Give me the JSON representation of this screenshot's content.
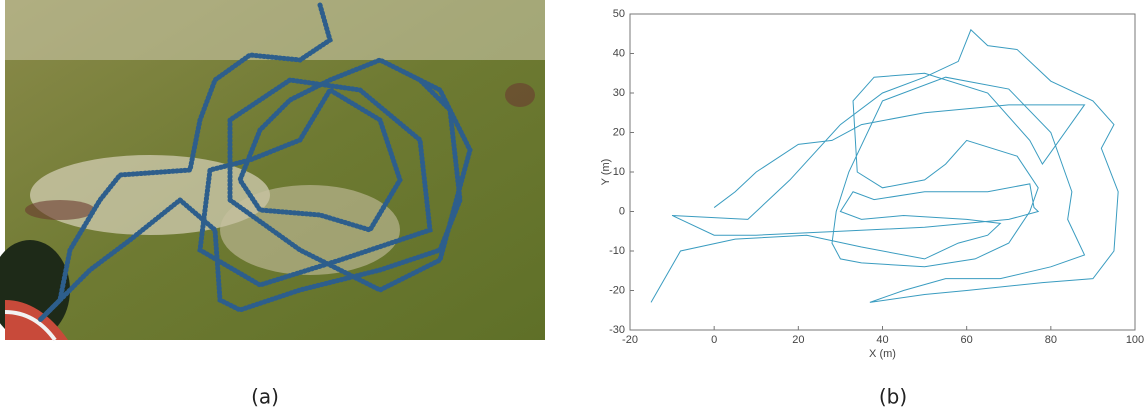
{
  "panels": [
    {
      "caption": "(a)"
    },
    {
      "caption": "(b)"
    }
  ],
  "chart_data": {
    "type": "line",
    "xlabel": "X (m)",
    "ylabel": "Y (m)",
    "color": "#3a9cc0",
    "xlim": [
      -20,
      100
    ],
    "xticks": [
      -20,
      0,
      20,
      40,
      60,
      80,
      100
    ],
    "ylim": [
      -30,
      50
    ],
    "yticks": [
      -30,
      -20,
      -10,
      0,
      10,
      20,
      30,
      40,
      50
    ],
    "x": [
      -15,
      -8,
      5,
      22,
      35,
      50,
      58,
      65,
      68,
      60,
      45,
      35,
      30,
      33,
      38,
      50,
      65,
      75,
      76,
      77,
      70,
      50,
      30,
      10,
      0,
      -10,
      8,
      18,
      30,
      40,
      50,
      58,
      61,
      65,
      72,
      80,
      90,
      95,
      92,
      96,
      95,
      90,
      78,
      60,
      50,
      37,
      45,
      55,
      68,
      80,
      88,
      84,
      85,
      80,
      70,
      55,
      40,
      32,
      29,
      28,
      30,
      35,
      50,
      62,
      70,
      75,
      77,
      72,
      60,
      55,
      50,
      40,
      34,
      33,
      38,
      50,
      65,
      75,
      78,
      88,
      70,
      50,
      35,
      28,
      20,
      10,
      5,
      0
    ],
    "values": [
      -23,
      -10,
      -7,
      -6,
      -9,
      -12,
      -8,
      -6,
      -3,
      -2,
      -1,
      -2,
      0,
      5,
      3,
      5,
      5,
      7,
      1,
      0,
      -2,
      -4,
      -5,
      -6,
      -6,
      -1,
      -2,
      8,
      22,
      30,
      34,
      38,
      46,
      42,
      41,
      33,
      28,
      22,
      16,
      5,
      -10,
      -17,
      -18,
      -20,
      -21,
      -23,
      -20,
      -17,
      -17,
      -14,
      -11,
      -2,
      5,
      20,
      31,
      34,
      28,
      10,
      0,
      -8,
      -12,
      -13,
      -14,
      -12,
      -8,
      0,
      6,
      14,
      18,
      12,
      8,
      6,
      10,
      28,
      34,
      35,
      30,
      18,
      12,
      27,
      27,
      25,
      22,
      18,
      17,
      10,
      5,
      1
    ]
  }
}
